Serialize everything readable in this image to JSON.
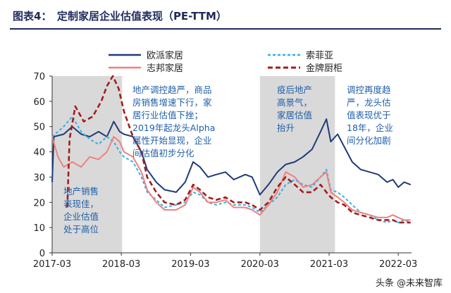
{
  "title": "图表4：　定制家居企业估值表现（PE-TTM）",
  "watermark": "头条 @未来智库",
  "chart_data": {
    "type": "line",
    "ylim": [
      0,
      70
    ],
    "yticks": [
      0,
      10,
      20,
      30,
      40,
      50,
      60,
      70
    ],
    "xlim": [
      "2017-03-01",
      "2022-05-10"
    ],
    "xticks": [
      "2017-03",
      "2018-03",
      "2019-03",
      "2020-03",
      "2021-03",
      "2022-03"
    ],
    "legend_position": "top",
    "shaded_periods": [
      {
        "start": "2017-03-01",
        "end": "2018-03-05",
        "annotation": [
          "地产销售",
          "表现佳，",
          "企业估值",
          "处于高位"
        ]
      },
      {
        "start": "2018-03-05",
        "end": "2020-03-01",
        "annotation": [
          "地产调控趋严，商品",
          "房销售增速下行，家",
          "居行业估值下挫；",
          "2019年起龙头Alpha",
          "属性开始显现，企业",
          "间估值初步分化"
        ]
      },
      {
        "start": "2020-03-01",
        "end": "2021-04-01",
        "annotation": [
          "疫后地产",
          "高景气，",
          "家居估值",
          "抬升"
        ]
      },
      {
        "start": "2021-04-01",
        "end": "2022-05-10",
        "annotation": [
          "调控再度趋",
          "严，龙头估",
          "值表现优于",
          "18年，企业",
          "间分化加剧"
        ]
      }
    ],
    "series": [
      {
        "name": "欧派家居",
        "color": "#1f3b7a",
        "dash": "solid",
        "points": [
          [
            "2017-03-01",
            28
          ],
          [
            "2017-03-10",
            46
          ],
          [
            "2017-05-01",
            47
          ],
          [
            "2017-06-15",
            50
          ],
          [
            "2017-08-01",
            47
          ],
          [
            "2017-09-15",
            46
          ],
          [
            "2017-11-01",
            48
          ],
          [
            "2017-12-15",
            46
          ],
          [
            "2018-01-20",
            52
          ],
          [
            "2018-02-20",
            48
          ],
          [
            "2018-03-15",
            47
          ],
          [
            "2018-05-01",
            46
          ],
          [
            "2018-06-15",
            40
          ],
          [
            "2018-07-15",
            33
          ],
          [
            "2018-09-01",
            28
          ],
          [
            "2018-10-15",
            25
          ],
          [
            "2018-12-15",
            24
          ],
          [
            "2019-02-01",
            28
          ],
          [
            "2019-03-15",
            36
          ],
          [
            "2019-04-20",
            34
          ],
          [
            "2019-06-01",
            30
          ],
          [
            "2019-07-15",
            31
          ],
          [
            "2019-09-01",
            32
          ],
          [
            "2019-10-15",
            29
          ],
          [
            "2019-12-15",
            31
          ],
          [
            "2020-01-20",
            30
          ],
          [
            "2020-03-01",
            23
          ],
          [
            "2020-04-15",
            27
          ],
          [
            "2020-06-01",
            32
          ],
          [
            "2020-07-15",
            35
          ],
          [
            "2020-09-01",
            36
          ],
          [
            "2020-10-15",
            38
          ],
          [
            "2020-12-01",
            41
          ],
          [
            "2021-01-15",
            48
          ],
          [
            "2021-02-15",
            53
          ],
          [
            "2021-03-10",
            44
          ],
          [
            "2021-04-15",
            47
          ],
          [
            "2021-05-20",
            42
          ],
          [
            "2021-07-01",
            36
          ],
          [
            "2021-08-15",
            33
          ],
          [
            "2021-10-01",
            32
          ],
          [
            "2021-11-15",
            31
          ],
          [
            "2022-01-01",
            28
          ],
          [
            "2022-02-01",
            29
          ],
          [
            "2022-03-01",
            26
          ],
          [
            "2022-04-01",
            28
          ],
          [
            "2022-05-05",
            27
          ]
        ]
      },
      {
        "name": "索菲亚",
        "color": "#2fb3e8",
        "dash": "4,3",
        "points": [
          [
            "2017-03-01",
            46
          ],
          [
            "2017-05-01",
            50
          ],
          [
            "2017-06-15",
            54
          ],
          [
            "2017-08-01",
            48
          ],
          [
            "2017-09-15",
            45
          ],
          [
            "2017-11-01",
            43
          ],
          [
            "2017-12-15",
            46
          ],
          [
            "2018-01-20",
            44
          ],
          [
            "2018-02-20",
            40
          ],
          [
            "2018-03-15",
            38
          ],
          [
            "2018-05-01",
            36
          ],
          [
            "2018-06-15",
            30
          ],
          [
            "2018-07-15",
            24
          ],
          [
            "2018-09-01",
            21
          ],
          [
            "2018-10-15",
            18
          ],
          [
            "2018-12-15",
            19
          ],
          [
            "2019-02-01",
            20
          ],
          [
            "2019-03-15",
            24
          ],
          [
            "2019-04-20",
            23
          ],
          [
            "2019-06-01",
            20
          ],
          [
            "2019-07-15",
            19
          ],
          [
            "2019-09-01",
            20
          ],
          [
            "2019-10-15",
            19
          ],
          [
            "2019-12-15",
            19
          ],
          [
            "2020-01-20",
            18
          ],
          [
            "2020-03-01",
            16
          ],
          [
            "2020-04-15",
            19
          ],
          [
            "2020-06-01",
            22
          ],
          [
            "2020-07-15",
            27
          ],
          [
            "2020-09-01",
            29
          ],
          [
            "2020-10-15",
            27
          ],
          [
            "2020-12-01",
            26
          ],
          [
            "2021-01-15",
            30
          ],
          [
            "2021-02-15",
            33
          ],
          [
            "2021-03-10",
            25
          ],
          [
            "2021-04-15",
            24
          ],
          [
            "2021-05-20",
            22
          ],
          [
            "2021-07-01",
            19
          ],
          [
            "2021-08-15",
            16
          ],
          [
            "2021-10-01",
            15
          ],
          [
            "2021-11-15",
            13
          ],
          [
            "2022-01-01",
            12
          ],
          [
            "2022-02-01",
            13
          ],
          [
            "2022-03-01",
            12
          ],
          [
            "2022-04-01",
            13
          ],
          [
            "2022-05-05",
            12
          ]
        ]
      },
      {
        "name": "志邦家居",
        "color": "#f08080",
        "dash": "solid",
        "points": [
          [
            "2017-03-01",
            46
          ],
          [
            "2017-04-01",
            38
          ],
          [
            "2017-05-01",
            34
          ],
          [
            "2017-06-15",
            36
          ],
          [
            "2017-08-01",
            34
          ],
          [
            "2017-09-15",
            38
          ],
          [
            "2017-11-01",
            37
          ],
          [
            "2017-12-15",
            40
          ],
          [
            "2018-01-20",
            46
          ],
          [
            "2018-02-20",
            44
          ],
          [
            "2018-03-15",
            40
          ],
          [
            "2018-05-01",
            38
          ],
          [
            "2018-06-15",
            32
          ],
          [
            "2018-07-15",
            25
          ],
          [
            "2018-09-01",
            20
          ],
          [
            "2018-10-15",
            17
          ],
          [
            "2018-12-15",
            17
          ],
          [
            "2019-02-01",
            19
          ],
          [
            "2019-03-15",
            26
          ],
          [
            "2019-04-20",
            24
          ],
          [
            "2019-06-01",
            20
          ],
          [
            "2019-07-15",
            20
          ],
          [
            "2019-09-01",
            21
          ],
          [
            "2019-10-15",
            18
          ],
          [
            "2019-12-15",
            18
          ],
          [
            "2020-01-20",
            17
          ],
          [
            "2020-03-01",
            15
          ],
          [
            "2020-04-15",
            19
          ],
          [
            "2020-06-01",
            24
          ],
          [
            "2020-07-15",
            32
          ],
          [
            "2020-09-01",
            30
          ],
          [
            "2020-10-15",
            26
          ],
          [
            "2020-12-01",
            27
          ],
          [
            "2021-01-15",
            30
          ],
          [
            "2021-02-15",
            32
          ],
          [
            "2021-03-10",
            24
          ],
          [
            "2021-04-15",
            22
          ],
          [
            "2021-05-20",
            20
          ],
          [
            "2021-07-01",
            17
          ],
          [
            "2021-08-15",
            16
          ],
          [
            "2021-10-01",
            15
          ],
          [
            "2021-11-15",
            14
          ],
          [
            "2022-01-01",
            14
          ],
          [
            "2022-02-01",
            15
          ],
          [
            "2022-03-01",
            14
          ],
          [
            "2022-04-01",
            13
          ],
          [
            "2022-05-05",
            13
          ]
        ]
      },
      {
        "name": "金牌厨柜",
        "color": "#a51c1c",
        "dash": "7,4",
        "points": [
          [
            "2017-05-20",
            18
          ],
          [
            "2017-06-01",
            45
          ],
          [
            "2017-07-01",
            58
          ],
          [
            "2017-08-15",
            52
          ],
          [
            "2017-10-01",
            54
          ],
          [
            "2017-11-15",
            60
          ],
          [
            "2017-12-15",
            66
          ],
          [
            "2018-01-15",
            70
          ],
          [
            "2018-02-15",
            65
          ],
          [
            "2018-03-15",
            56
          ],
          [
            "2018-05-01",
            46
          ],
          [
            "2018-06-15",
            40
          ],
          [
            "2018-07-15",
            30
          ],
          [
            "2018-09-01",
            24
          ],
          [
            "2018-10-15",
            20
          ],
          [
            "2018-12-15",
            19
          ],
          [
            "2019-02-01",
            21
          ],
          [
            "2019-03-15",
            27
          ],
          [
            "2019-04-20",
            25
          ],
          [
            "2019-06-01",
            22
          ],
          [
            "2019-07-15",
            21
          ],
          [
            "2019-09-01",
            22
          ],
          [
            "2019-10-15",
            20
          ],
          [
            "2019-12-15",
            20
          ],
          [
            "2020-01-20",
            19
          ],
          [
            "2020-03-01",
            17
          ],
          [
            "2020-04-15",
            20
          ],
          [
            "2020-06-01",
            26
          ],
          [
            "2020-07-15",
            30
          ],
          [
            "2020-09-01",
            27
          ],
          [
            "2020-10-15",
            24
          ],
          [
            "2020-12-01",
            24
          ],
          [
            "2021-01-15",
            27
          ],
          [
            "2021-02-15",
            24
          ],
          [
            "2021-03-10",
            22
          ],
          [
            "2021-04-15",
            20
          ],
          [
            "2021-05-20",
            19
          ],
          [
            "2021-07-01",
            16
          ],
          [
            "2021-08-15",
            15
          ],
          [
            "2021-10-01",
            14
          ],
          [
            "2021-11-15",
            13
          ],
          [
            "2022-01-01",
            13
          ],
          [
            "2022-02-01",
            13
          ],
          [
            "2022-03-01",
            12
          ],
          [
            "2022-04-01",
            12
          ],
          [
            "2022-05-05",
            12
          ]
        ]
      }
    ]
  }
}
